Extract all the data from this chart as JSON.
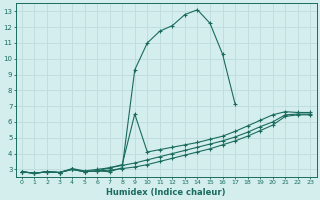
{
  "xlabel": "Humidex (Indice chaleur)",
  "ylabel": "",
  "xlim": [
    -0.5,
    23.5
  ],
  "ylim": [
    2.5,
    13.5
  ],
  "xticks": [
    0,
    1,
    2,
    3,
    4,
    5,
    6,
    7,
    8,
    9,
    10,
    11,
    12,
    13,
    14,
    15,
    16,
    17,
    18,
    19,
    20,
    21,
    22,
    23
  ],
  "yticks": [
    3,
    4,
    5,
    6,
    7,
    8,
    9,
    10,
    11,
    12,
    13
  ],
  "bg_color": "#d4eeed",
  "line_color": "#1a6b5e",
  "grid_color": "#c0dede",
  "lines": [
    {
      "x": [
        0,
        1,
        2,
        3,
        4,
        5,
        6,
        7,
        8,
        9,
        10,
        11,
        12,
        13,
        14,
        15,
        16,
        17
      ],
      "y": [
        2.85,
        2.75,
        2.85,
        2.8,
        3.0,
        2.85,
        2.9,
        2.85,
        3.1,
        9.3,
        11.0,
        11.75,
        12.1,
        12.8,
        13.1,
        12.25,
        10.3,
        7.15
      ]
    },
    {
      "x": [
        0,
        1,
        2,
        3,
        4,
        5,
        6,
        7,
        8,
        9,
        10,
        11,
        12,
        13,
        14,
        15,
        16,
        17,
        18,
        19,
        20,
        21,
        22,
        23
      ],
      "y": [
        2.85,
        2.75,
        2.85,
        2.8,
        3.0,
        2.85,
        2.9,
        3.1,
        3.3,
        6.5,
        4.1,
        4.25,
        4.4,
        4.55,
        4.7,
        4.9,
        5.1,
        5.4,
        5.75,
        6.1,
        6.45,
        6.65,
        6.6,
        6.6
      ]
    },
    {
      "x": [
        0,
        1,
        2,
        3,
        4,
        5,
        6,
        7,
        8,
        9,
        10,
        11,
        12,
        13,
        14,
        15,
        16,
        17,
        18,
        19,
        20,
        21,
        22,
        23
      ],
      "y": [
        2.85,
        2.75,
        2.85,
        2.8,
        3.05,
        2.9,
        3.0,
        3.1,
        3.25,
        3.4,
        3.6,
        3.8,
        4.0,
        4.2,
        4.4,
        4.6,
        4.8,
        5.05,
        5.35,
        5.7,
        6.0,
        6.45,
        6.5,
        6.5
      ]
    },
    {
      "x": [
        0,
        1,
        2,
        3,
        4,
        5,
        6,
        7,
        8,
        9,
        10,
        11,
        12,
        13,
        14,
        15,
        16,
        17,
        18,
        19,
        20,
        21,
        22,
        23
      ],
      "y": [
        2.85,
        2.75,
        2.85,
        2.8,
        3.0,
        2.85,
        2.9,
        2.95,
        3.05,
        3.15,
        3.3,
        3.5,
        3.7,
        3.9,
        4.1,
        4.3,
        4.55,
        4.8,
        5.1,
        5.45,
        5.8,
        6.35,
        6.45,
        6.45
      ]
    }
  ]
}
